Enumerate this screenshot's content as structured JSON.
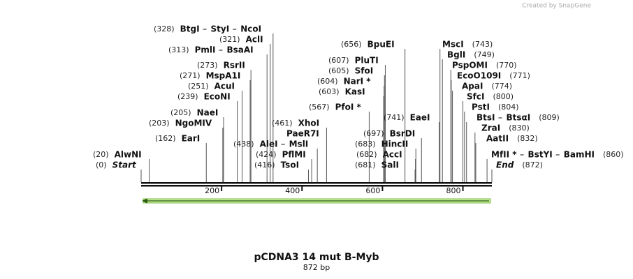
{
  "credit": "Created by SnapGene",
  "title": "pCDNA3 14 mut B-Myb",
  "subtitle": "872 bp",
  "ruler_ticks": [
    200,
    400,
    600,
    800
  ],
  "sites": [
    {
      "names": [
        "BtgI",
        "StyI",
        "NcoI"
      ],
      "position": {
        "value": 328,
        "label": "(328)"
      }
    },
    {
      "names": [
        "AclI"
      ],
      "position": {
        "value": 321,
        "label": "(321)"
      }
    },
    {
      "names": [
        "PmlI",
        "BsaAI"
      ],
      "position": {
        "value": 313,
        "label": "(313)"
      }
    },
    {
      "names": [
        "RsrII"
      ],
      "position": {
        "value": 273,
        "label": "(273)"
      }
    },
    {
      "names": [
        "MspA1I"
      ],
      "position": {
        "value": 271,
        "label": "(271)"
      }
    },
    {
      "names": [
        "AcuI"
      ],
      "position": {
        "value": 251,
        "label": "(251)"
      }
    },
    {
      "names": [
        "EcoNI"
      ],
      "position": {
        "value": 239,
        "label": "(239)"
      }
    },
    {
      "names": [
        "NaeI"
      ],
      "position": {
        "value": 205,
        "label": "(205)"
      }
    },
    {
      "names": [
        "NgoMIV"
      ],
      "position": {
        "value": 203,
        "label": "(203)"
      }
    },
    {
      "names": [
        "EarI"
      ],
      "position": {
        "value": 162,
        "label": "(162)"
      }
    },
    {
      "names": [
        "AlwNI"
      ],
      "position": {
        "value": 20,
        "label": "(20)"
      }
    },
    {
      "names": [
        "Start"
      ],
      "position": {
        "value": 0,
        "label": "(0)"
      }
    },
    {
      "names": [
        "AleI",
        "MslI"
      ],
      "position": {
        "value": 438,
        "label": "(438)"
      }
    },
    {
      "names": [
        "PflMI"
      ],
      "position": {
        "value": 424,
        "label": "(424)"
      }
    },
    {
      "names": [
        "TsoI"
      ],
      "position": {
        "value": 416,
        "label": "(416)"
      }
    },
    {
      "names": [
        "XhoI",
        "PaeR7I"
      ],
      "position": {
        "value": 461,
        "label": "(461)"
      }
    },
    {
      "names": [
        "BpuEI"
      ],
      "position": {
        "value": 656,
        "label": "(656)"
      }
    },
    {
      "names": [
        "PluTI"
      ],
      "position": {
        "value": 607,
        "label": "(607)"
      }
    },
    {
      "names": [
        "SfoI"
      ],
      "position": {
        "value": 605,
        "label": "(605)"
      }
    },
    {
      "names": [
        "NarI *"
      ],
      "position": {
        "value": 604,
        "label": "(604)"
      }
    },
    {
      "names": [
        "KasI"
      ],
      "position": {
        "value": 603,
        "label": "(603)"
      }
    },
    {
      "names": [
        "PfoI *"
      ],
      "position": {
        "value": 567,
        "label": "(567)"
      }
    },
    {
      "names": [
        "EaeI"
      ],
      "position": {
        "value": 741,
        "label": "(741)"
      }
    },
    {
      "names": [
        "BsrDI"
      ],
      "position": {
        "value": 697,
        "label": "(697)"
      }
    },
    {
      "names": [
        "HincII"
      ],
      "position": {
        "value": 683,
        "label": "(683)"
      }
    },
    {
      "names": [
        "AccI"
      ],
      "position": {
        "value": 682,
        "label": "(682)"
      }
    },
    {
      "names": [
        "SalI"
      ],
      "position": {
        "value": 681,
        "label": "(681)"
      }
    },
    {
      "names": [
        "MscI"
      ],
      "position": {
        "value": 743,
        "label": "(743)"
      }
    },
    {
      "names": [
        "BglI"
      ],
      "position": {
        "value": 749,
        "label": "(749)"
      }
    },
    {
      "names": [
        "PspOMI"
      ],
      "position": {
        "value": 770,
        "label": "(770)"
      }
    },
    {
      "names": [
        "EcoO109I"
      ],
      "position": {
        "value": 771,
        "label": "(771)"
      }
    },
    {
      "names": [
        "ApaI"
      ],
      "position": {
        "value": 774,
        "label": "(774)"
      }
    },
    {
      "names": [
        "SfcI"
      ],
      "position": {
        "value": 800,
        "label": "(800)"
      }
    },
    {
      "names": [
        "PstI"
      ],
      "position": {
        "value": 804,
        "label": "(804)"
      }
    },
    {
      "names": [
        "BtsI",
        "BtsαI"
      ],
      "position": {
        "value": 809,
        "label": "(809)"
      }
    },
    {
      "names": [
        "ZraI"
      ],
      "position": {
        "value": 830,
        "label": "(830)"
      }
    },
    {
      "names": [
        "AatII"
      ],
      "position": {
        "value": 832,
        "label": "(832)"
      }
    },
    {
      "names": [
        "MfII *",
        "BstYI",
        "BamHI"
      ],
      "position": {
        "value": 860,
        "label": "(860)"
      }
    },
    {
      "names": [
        "End"
      ],
      "position": {
        "value": 872,
        "label": "(872)"
      }
    }
  ]
}
